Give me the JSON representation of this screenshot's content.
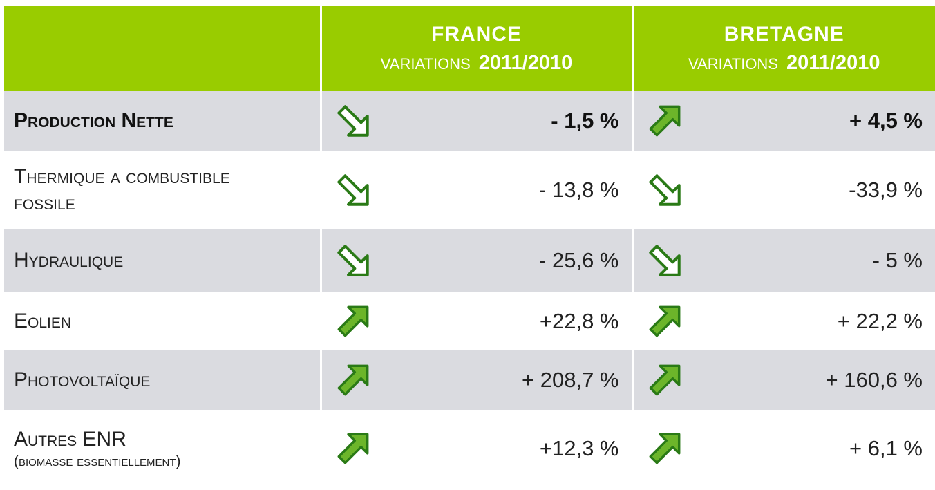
{
  "header": {
    "columns": [
      {
        "name": "FRANCE",
        "sub": "VARIATIONS",
        "period": "2011/2010"
      },
      {
        "name": "BRETAGNE",
        "sub": "VARIATIONS",
        "period": "2011/2010"
      }
    ]
  },
  "rows": [
    {
      "label": "Production Nette",
      "france": "- 1,5 %",
      "bretagne": "+ 4,5 %"
    },
    {
      "label": "Thermique a combustible fossile",
      "france": "- 13,8 %",
      "bretagne": "-33,9 %"
    },
    {
      "label": "Hydraulique",
      "france": "- 25,6 %",
      "bretagne": "- 5 %"
    },
    {
      "label": "Eolien",
      "france": "+22,8 %",
      "bretagne": "+ 22,2 %"
    },
    {
      "label": "Photovoltaïque",
      "france": "+ 208,7 %",
      "bretagne": "+ 160,6 %"
    },
    {
      "label": "Autres ENR",
      "note": "(biomasse essentiellement)",
      "france": "+12,3 %",
      "bretagne": "+ 6,1 %"
    }
  ]
}
